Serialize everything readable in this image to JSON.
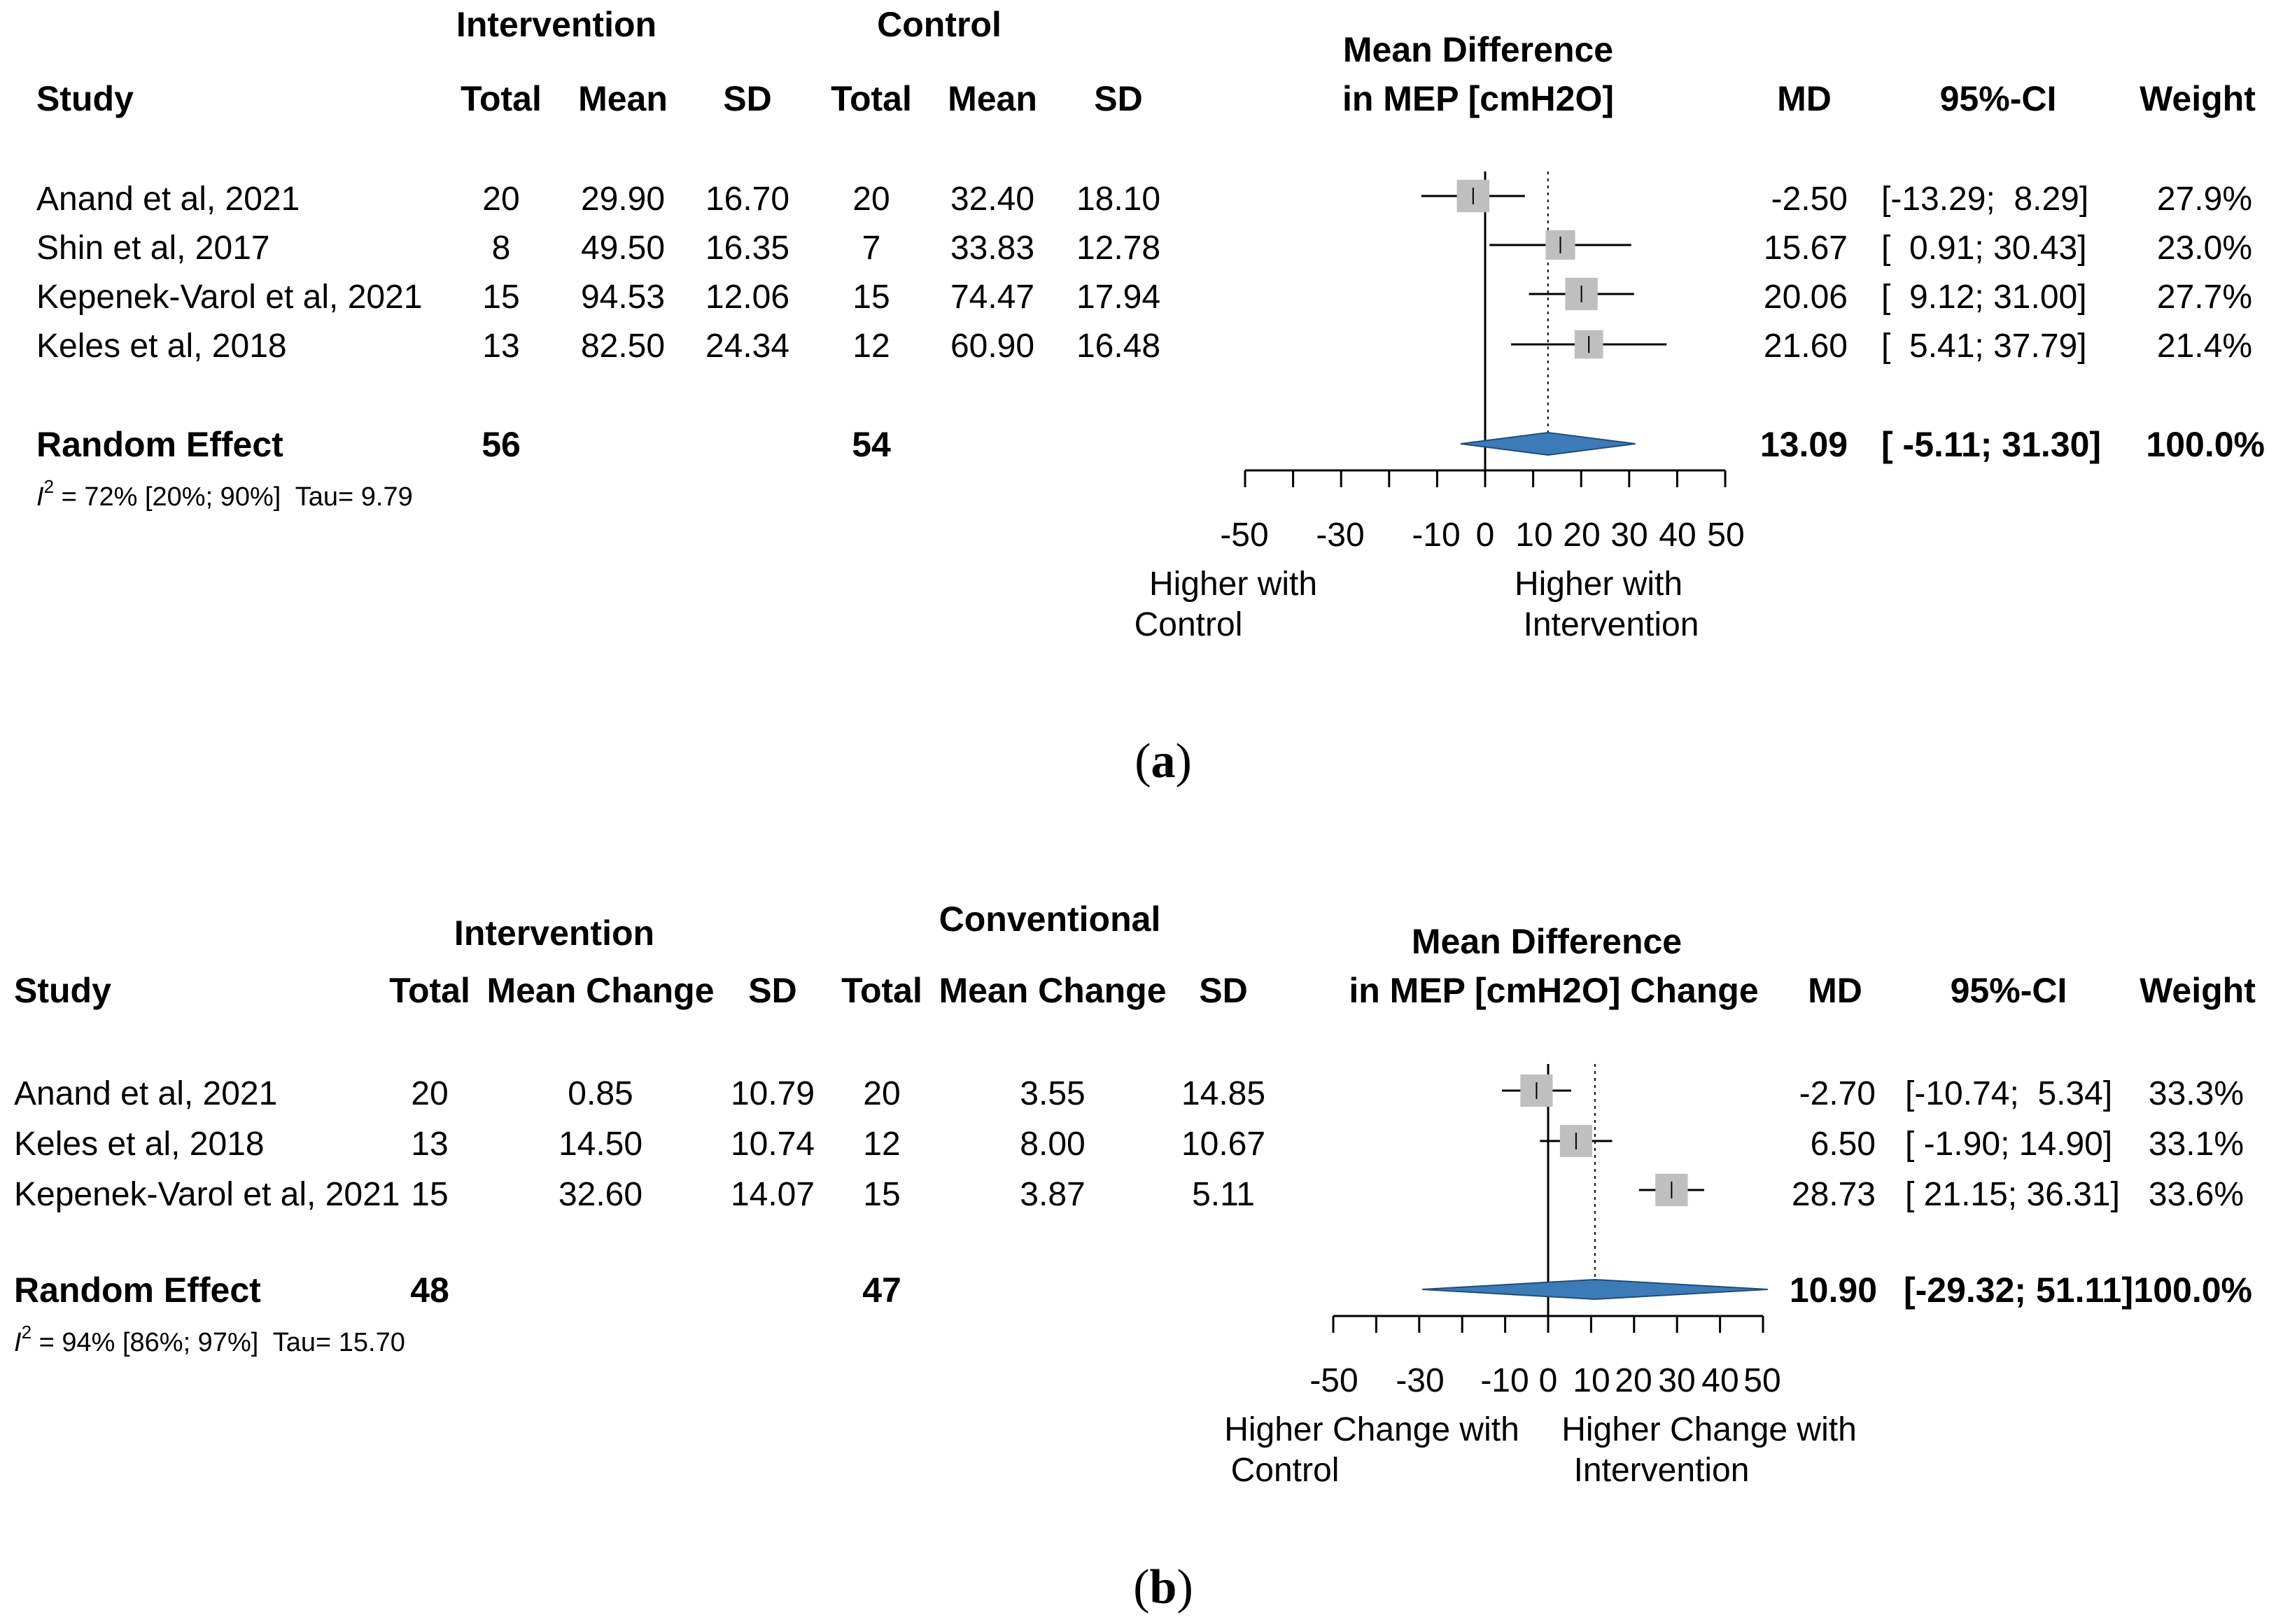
{
  "panels": [
    {
      "label_parts": [
        "(",
        "a",
        ")"
      ],
      "group1_header": "Intervention",
      "group2_header": "Control",
      "columns": [
        "Study",
        "Total",
        "Mean",
        "SD",
        "Total",
        "Mean",
        "SD",
        "MD",
        "95%-CI",
        "Weight"
      ],
      "plot_title": [
        "Mean Difference",
        "in MEP [cmH2O]"
      ],
      "rows": [
        [
          "Anand et al, 2021",
          "20",
          "29.90",
          "16.70",
          "20",
          "32.40",
          "18.10",
          "-2.50",
          "[-13.29;  8.29]",
          "27.9%"
        ],
        [
          "Shin et al, 2017",
          "8",
          "49.50",
          "16.35",
          "7",
          "33.83",
          "12.78",
          "15.67",
          "[  0.91; 30.43]",
          "23.0%"
        ],
        [
          "Kepenek-Varol et al, 2021",
          "15",
          "94.53",
          "12.06",
          "15",
          "74.47",
          "17.94",
          "20.06",
          "[  9.12; 31.00]",
          "27.7%"
        ],
        [
          "Keles et al, 2018",
          "13",
          "82.50",
          "24.34",
          "12",
          "60.90",
          "16.48",
          "21.60",
          "[  5.41; 37.79]",
          "21.4%"
        ]
      ],
      "summary": [
        "Random Effect",
        "56",
        "54",
        "13.09",
        "[ -5.11; 31.30]",
        "100.0%"
      ],
      "heterogeneity": {
        "i": "I",
        "sup": "2",
        "text": " = 72% [20%; 90%]  Tau= 9.79"
      },
      "axis_labels": [
        "-50",
        "-30",
        "-10",
        "0",
        "10",
        "20",
        "30",
        "40",
        "50"
      ],
      "left_label": [
        "Higher with",
        "Control"
      ],
      "right_label": [
        "Higher with",
        "Intervention"
      ]
    },
    {
      "label_parts": [
        "(",
        "b",
        ")"
      ],
      "group1_header": "Intervention",
      "group2_header": "Conventional",
      "columns": [
        "Study",
        "Total",
        "Mean Change",
        "SD",
        "Total",
        "Mean Change",
        "SD",
        "MD",
        "95%-CI",
        "Weight"
      ],
      "plot_title": [
        "Mean Difference",
        "in MEP [cmH2O] Change"
      ],
      "rows": [
        [
          "Anand et al, 2021",
          "20",
          "0.85",
          "10.79",
          "20",
          "3.55",
          "14.85",
          "-2.70",
          "[-10.74;  5.34]",
          "33.3%"
        ],
        [
          "Keles et al, 2018",
          "13",
          "14.50",
          "10.74",
          "12",
          "8.00",
          "10.67",
          "6.50",
          "[ -1.90; 14.90]",
          "33.1%"
        ],
        [
          "Kepenek-Varol et al, 2021",
          "15",
          "32.60",
          "14.07",
          "15",
          "3.87",
          "5.11",
          "28.73",
          "[ 21.15; 36.31]",
          "33.6%"
        ]
      ],
      "summary": [
        "Random Effect",
        "48",
        "47",
        "10.90",
        "[-29.32; 51.11]",
        "100.0%"
      ],
      "heterogeneity": {
        "i": "I",
        "sup": "2",
        "text": " = 94% [86%; 97%]  Tau= 15.70"
      },
      "axis_labels": [
        "-50",
        "-30",
        "-10",
        "0",
        "10",
        "20",
        "30",
        "40",
        "50"
      ],
      "left_label": [
        "Higher Change with",
        "Control"
      ],
      "right_label": [
        "Higher Change with",
        "Intervention"
      ]
    }
  ],
  "chart_data": [
    {
      "type": "forest",
      "title": "Mean Difference in MEP [cmH2O]",
      "xlim": [
        -50,
        50
      ],
      "xticks": [
        -50,
        -40,
        -30,
        -20,
        -10,
        0,
        10,
        20,
        30,
        40,
        50
      ],
      "colors": {
        "box": "#bfbfbf",
        "diamond": "#3d7ab8",
        "line": "#000000"
      },
      "studies": [
        {
          "name": "Anand et al, 2021",
          "md": -2.5,
          "lo": -13.29,
          "hi": 8.29,
          "weight": 27.9
        },
        {
          "name": "Shin et al, 2017",
          "md": 15.67,
          "lo": 0.91,
          "hi": 30.43,
          "weight": 23.0
        },
        {
          "name": "Kepenek-Varol et al, 2021",
          "md": 20.06,
          "lo": 9.12,
          "hi": 31.0,
          "weight": 27.7
        },
        {
          "name": "Keles et al, 2018",
          "md": 21.6,
          "lo": 5.41,
          "hi": 37.79,
          "weight": 21.4
        }
      ],
      "summary": {
        "md": 13.09,
        "lo": -5.11,
        "hi": 31.3
      }
    },
    {
      "type": "forest",
      "title": "Mean Difference in MEP [cmH2O] Change",
      "xlim": [
        -50,
        50
      ],
      "xticks": [
        -50,
        -40,
        -30,
        -20,
        -10,
        0,
        10,
        20,
        30,
        40,
        50
      ],
      "colors": {
        "box": "#bfbfbf",
        "diamond": "#3d7ab8",
        "line": "#000000"
      },
      "studies": [
        {
          "name": "Anand et al, 2021",
          "md": -2.7,
          "lo": -10.74,
          "hi": 5.34,
          "weight": 33.3
        },
        {
          "name": "Keles et al, 2018",
          "md": 6.5,
          "lo": -1.9,
          "hi": 14.9,
          "weight": 33.1
        },
        {
          "name": "Kepenek-Varol et al, 2021",
          "md": 28.73,
          "lo": 21.15,
          "hi": 36.31,
          "weight": 33.6
        }
      ],
      "summary": {
        "md": 10.9,
        "lo": -29.32,
        "hi": 51.11
      }
    }
  ]
}
